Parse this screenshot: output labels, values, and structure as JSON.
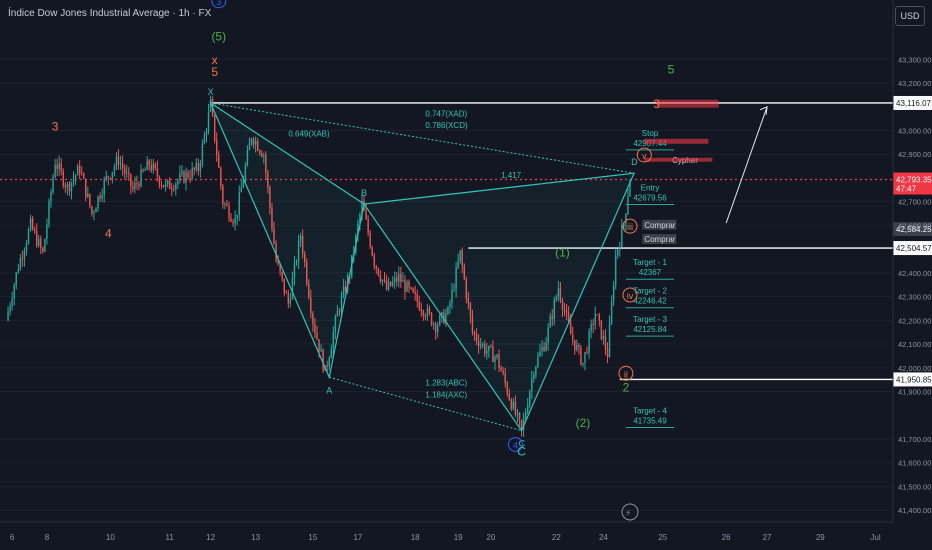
{
  "title": "Índice Dow Jones Industrial Average · 1h · FX",
  "currency_button": "USD",
  "colors": {
    "background": "#131722",
    "up": "#26a69a",
    "down": "#ef5350",
    "pattern": "#2ec4b6",
    "wave_orange": "#f0744a",
    "wave_green": "#4caf50",
    "wave_blue": "#2962ff",
    "level_line": "#ffffff",
    "current_price": "#f23645",
    "axis_text": "#8c93a3"
  },
  "chart_data": {
    "type": "candlestick",
    "symbol": "Índice Dow Jones Industrial Average",
    "interval": "1h",
    "y_axis": {
      "range": [
        41350,
        43550
      ],
      "ticks": [
        43300,
        43200,
        43000,
        42900,
        42700,
        42600,
        42400,
        42300,
        42200,
        42100,
        42000,
        41900,
        41700,
        41600,
        41500,
        41400
      ],
      "tick_labels": [
        "43,300.00",
        "43,200.00",
        "43,000.00",
        "42,900.00",
        "42,700.00",
        "42,600.00",
        "42,400.00",
        "42,300.00",
        "42,200.00",
        "42,100.00",
        "42,000.00",
        "41,900.00",
        "41,700.00",
        "41,600.00",
        "41,500.00",
        "41,400.00"
      ]
    },
    "x_axis": {
      "index_range": [
        0,
        305
      ],
      "tick_index": [
        3,
        20,
        51,
        80,
        100,
        122,
        150,
        172,
        200,
        221,
        237,
        269,
        292,
        321,
        352,
        372,
        398,
        425
      ],
      "tick_labels": [
        "6",
        "8",
        "10",
        "11",
        "12",
        "13",
        "15",
        "17",
        "18",
        "19",
        "20",
        "22",
        "24",
        "25",
        "26",
        "27",
        "29",
        "Jul"
      ]
    },
    "price_path": [
      {
        "i": 0,
        "p": 42200
      },
      {
        "i": 6,
        "p": 42430
      },
      {
        "i": 12,
        "p": 42600
      },
      {
        "i": 18,
        "p": 42480
      },
      {
        "i": 24,
        "p": 42870
      },
      {
        "i": 30,
        "p": 42760
      },
      {
        "i": 36,
        "p": 42840
      },
      {
        "i": 42,
        "p": 42650
      },
      {
        "i": 48,
        "p": 42780
      },
      {
        "i": 55,
        "p": 42880
      },
      {
        "i": 62,
        "p": 42750
      },
      {
        "i": 70,
        "p": 42860
      },
      {
        "i": 78,
        "p": 42760
      },
      {
        "i": 86,
        "p": 42800
      },
      {
        "i": 94,
        "p": 42840
      },
      {
        "i": 100,
        "p": 43110
      },
      {
        "i": 106,
        "p": 42700
      },
      {
        "i": 112,
        "p": 42620
      },
      {
        "i": 120,
        "p": 42980
      },
      {
        "i": 126,
        "p": 42900
      },
      {
        "i": 132,
        "p": 42450
      },
      {
        "i": 138,
        "p": 42270
      },
      {
        "i": 144,
        "p": 42560
      },
      {
        "i": 150,
        "p": 42200
      },
      {
        "i": 156,
        "p": 41980
      },
      {
        "i": 162,
        "p": 42230
      },
      {
        "i": 168,
        "p": 42400
      },
      {
        "i": 174,
        "p": 42690
      },
      {
        "i": 180,
        "p": 42450
      },
      {
        "i": 186,
        "p": 42330
      },
      {
        "i": 192,
        "p": 42380
      },
      {
        "i": 198,
        "p": 42310
      },
      {
        "i": 204,
        "p": 42250
      },
      {
        "i": 210,
        "p": 42180
      },
      {
        "i": 216,
        "p": 42230
      },
      {
        "i": 222,
        "p": 42480
      },
      {
        "i": 228,
        "p": 42150
      },
      {
        "i": 234,
        "p": 42080
      },
      {
        "i": 240,
        "p": 42040
      },
      {
        "i": 246,
        "p": 41880
      },
      {
        "i": 252,
        "p": 41730
      },
      {
        "i": 258,
        "p": 42000
      },
      {
        "i": 264,
        "p": 42120
      },
      {
        "i": 270,
        "p": 42340
      },
      {
        "i": 276,
        "p": 42140
      },
      {
        "i": 282,
        "p": 42020
      },
      {
        "i": 288,
        "p": 42230
      },
      {
        "i": 294,
        "p": 42060
      },
      {
        "i": 298,
        "p": 42470
      },
      {
        "i": 302,
        "p": 42610
      },
      {
        "i": 305,
        "p": 42800
      }
    ],
    "candle_seed": 7,
    "horizontal_levels": [
      {
        "price": 43116.07,
        "label": "43,116.07",
        "from_index": 100
      },
      {
        "price": 42504.57,
        "label": "42,504.57",
        "from_index": 226
      },
      {
        "price": 41950.85,
        "label": "41,950.85",
        "from_index": 300
      }
    ],
    "current_price": {
      "price": 42793.35,
      "label": "42,793.35",
      "countdown": "47:47"
    },
    "secondary_price": {
      "price": 42584.25,
      "label": "42,584.25"
    },
    "pattern": {
      "name": "Cypher",
      "points": [
        {
          "label": "X",
          "i": 100,
          "p": 43116
        },
        {
          "label": "A",
          "i": 158,
          "p": 41960
        },
        {
          "label": "B",
          "i": 175,
          "p": 42690
        },
        {
          "label": "C",
          "i": 252,
          "p": 41735
        },
        {
          "label": "D",
          "i": 307,
          "p": 42820
        }
      ],
      "ratios": [
        {
          "text": "0.649(XAB)",
          "i": 138,
          "p": 42975
        },
        {
          "text": "0.747(XAD)",
          "i": 205,
          "p": 43060
        },
        {
          "text": "0.786(XCD)",
          "i": 205,
          "p": 43010
        },
        {
          "text": "1.283(ABC)",
          "i": 205,
          "p": 41925
        },
        {
          "text": "1.184(AXC)",
          "i": 205,
          "p": 41875
        },
        {
          "text": "1.417",
          "i": 242,
          "p": 42800
        }
      ]
    },
    "trade_levels": [
      {
        "label": "Stop",
        "value": "42907.44",
        "price": 42935
      },
      {
        "label": "Entry",
        "value": "42679.56",
        "price": 42705
      },
      {
        "label": "Target - 1",
        "value": "42367",
        "price": 42390
      },
      {
        "label": "Target - 2",
        "value": "42246.42",
        "price": 42270
      },
      {
        "label": "Target - 3",
        "value": "42125.84",
        "price": 42150
      },
      {
        "label": "Target - 4",
        "value": "41735.49",
        "price": 41765
      }
    ],
    "wave_labels": [
      {
        "text": "3",
        "i": 104,
        "p": 43530,
        "color": "blue",
        "circle": true
      },
      {
        "text": "(5)",
        "i": 104,
        "p": 43380,
        "color": "green"
      },
      {
        "text": "x",
        "i": 102,
        "p": 43280,
        "color": "orange"
      },
      {
        "text": "5",
        "i": 102,
        "p": 43230,
        "color": "orange"
      },
      {
        "text": "3",
        "i": 24,
        "p": 43000,
        "color": "orange"
      },
      {
        "text": "4",
        "i": 50,
        "p": 42550,
        "color": "orange"
      },
      {
        "text": "5",
        "i": 325,
        "p": 43240,
        "color": "green"
      },
      {
        "text": "3",
        "i": 318,
        "p": 43095,
        "color": "orange"
      },
      {
        "text": "(1)",
        "i": 272,
        "p": 42470,
        "color": "green"
      },
      {
        "text": "(2)",
        "i": 282,
        "p": 41750,
        "color": "green"
      },
      {
        "text": "4",
        "i": 249,
        "p": 41660,
        "color": "blue",
        "circle": true
      },
      {
        "text": "C",
        "i": 252,
        "p": 41630,
        "color": "teal"
      },
      {
        "text": "2",
        "i": 303,
        "p": 41900,
        "color": "green"
      },
      {
        "text": "v",
        "i": 312,
        "p": 42880,
        "color": "orange",
        "circle": true
      },
      {
        "text": "iii",
        "i": 305,
        "p": 42580,
        "color": "orange",
        "circle": true
      },
      {
        "text": "iv",
        "i": 305,
        "p": 42290,
        "color": "orange",
        "circle": true
      },
      {
        "text": "ii",
        "i": 303,
        "p": 41960,
        "color": "orange",
        "circle": true
      }
    ],
    "small_labels": [
      {
        "text": "Comprar",
        "i": 312,
        "p": 42590
      },
      {
        "text": "Comprar",
        "i": 312,
        "p": 42530
      }
    ],
    "projection": {
      "from": {
        "i": 352,
        "p": 42610
      },
      "to": {
        "i": 372,
        "p": 43100
      }
    }
  }
}
